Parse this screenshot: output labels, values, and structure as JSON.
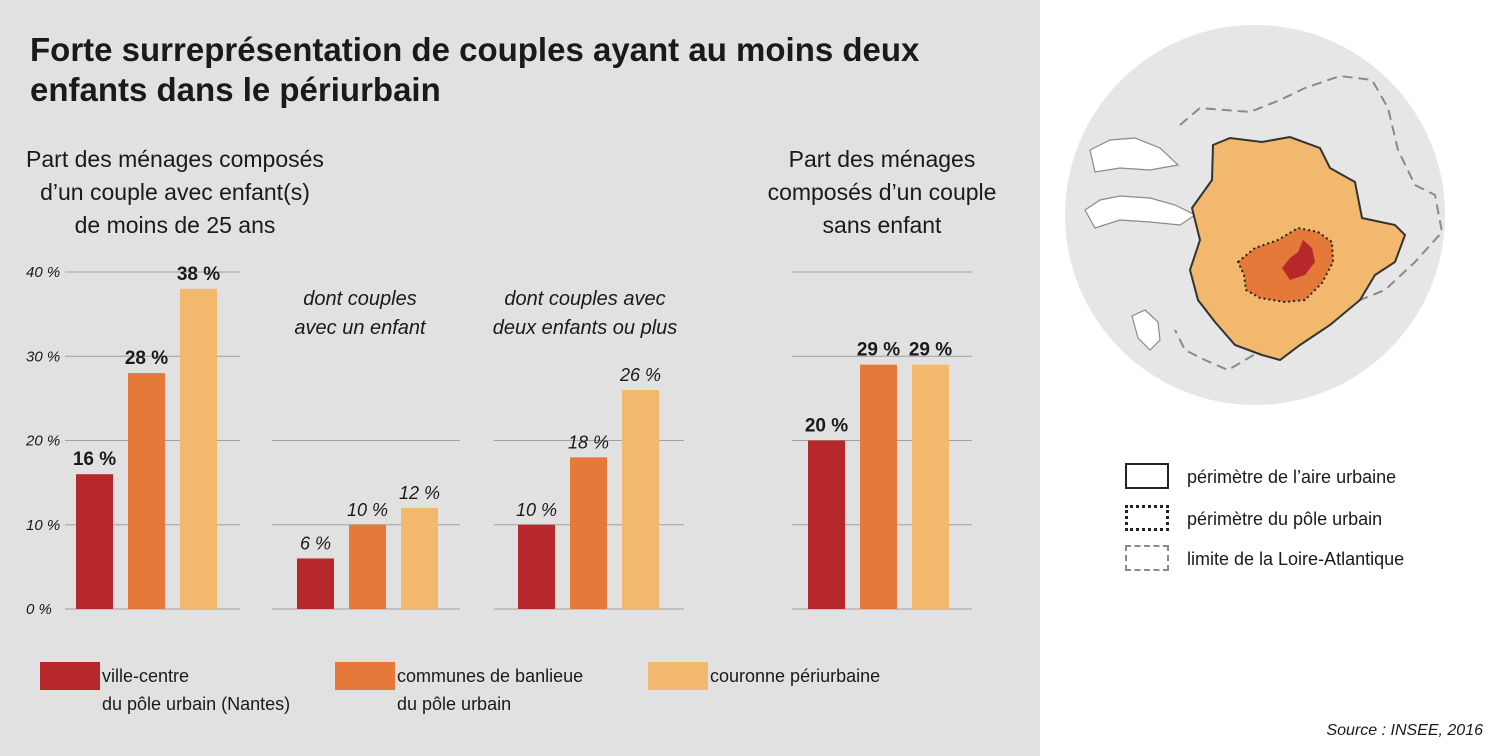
{
  "title": "Forte surreprésentation de couples ayant au moins deux enfants dans le périurbain",
  "subtitles": {
    "left": "Part des ménages composés\nd’un couple avec enfant(s)\nde moins de 25 ans",
    "right": "Part des ménages\ncomposés d’un couple\nsans enfant"
  },
  "source": "Source : INSEE, 2016",
  "colors": {
    "ville_centre": "#b7282a",
    "banlieue": "#e4793a",
    "couronne": "#f2b86e",
    "panel_bg": "#e1e1e1",
    "gridline": "#a0a0a0"
  },
  "chart_data": [
    {
      "type": "bar",
      "title": "Part des ménages composés d’un couple avec enfant(s) de moins de 25 ans",
      "categories": [
        "ville-centre du pôle urbain (Nantes)",
        "communes de banlieue du pôle urbain",
        "couronne périurbaine"
      ],
      "values": [
        16,
        28,
        38
      ],
      "labels": [
        "16 %",
        "28 %",
        "38 %"
      ],
      "ylim": [
        0,
        40
      ],
      "yticks": [
        "0 %",
        "10 %",
        "20 %",
        "30 %",
        "40 %"
      ],
      "grid": true
    },
    {
      "type": "bar",
      "title": "dont couples\navec un enfant",
      "categories": [
        "ville-centre du pôle urbain (Nantes)",
        "communes de banlieue du pôle urbain",
        "couronne périurbaine"
      ],
      "values": [
        6,
        10,
        12
      ],
      "labels": [
        "6 %",
        "10 %",
        "12 %"
      ],
      "ylim": [
        0,
        40
      ],
      "grid": true
    },
    {
      "type": "bar",
      "title": "dont couples avec\ndeux enfants ou plus",
      "categories": [
        "ville-centre du pôle urbain (Nantes)",
        "communes de banlieue du pôle urbain",
        "couronne périurbaine"
      ],
      "values": [
        10,
        18,
        26
      ],
      "labels": [
        "10 %",
        "18 %",
        "26 %"
      ],
      "ylim": [
        0,
        40
      ],
      "grid": true
    },
    {
      "type": "bar",
      "title": "Part des ménages composés d’un couple sans enfant",
      "categories": [
        "ville-centre du pôle urbain (Nantes)",
        "communes de banlieue du pôle urbain",
        "couronne périurbaine"
      ],
      "values": [
        20,
        29,
        29
      ],
      "labels": [
        "20 %",
        "29 %",
        "29 %"
      ],
      "ylim": [
        0,
        40
      ],
      "grid": true
    }
  ],
  "legend": [
    {
      "label": "ville-centre\ndu pôle urbain (Nantes)",
      "color": "#b7282a"
    },
    {
      "label": "communes de banlieue\ndu pôle urbain",
      "color": "#e4793a"
    },
    {
      "label": "couronne périurbaine",
      "color": "#f2b86e"
    }
  ],
  "map_legend": [
    {
      "label": "périmètre de l’aire urbaine",
      "style": "solid"
    },
    {
      "label": "périmètre du pôle urbain",
      "style": "dotted"
    },
    {
      "label": "limite de la Loire-Atlantique",
      "style": "dashed"
    }
  ]
}
